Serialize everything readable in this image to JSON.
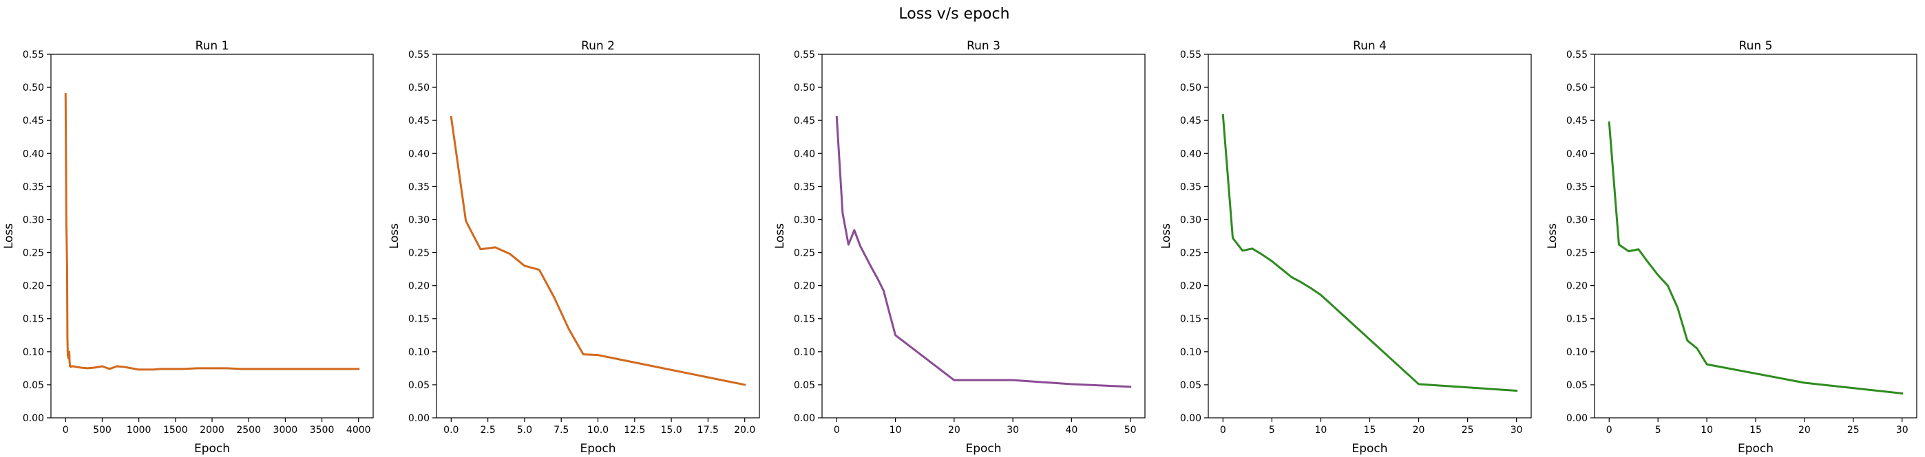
{
  "figure": {
    "title": "Loss v/s epoch"
  },
  "chart_data": [
    {
      "type": "line",
      "title": "Run 1",
      "xlabel": "Epoch",
      "ylabel": "Loss",
      "color": "#d2691e",
      "xlim": [
        -200,
        4200
      ],
      "ylim": [
        0,
        0.55
      ],
      "xticks": [
        0,
        500,
        1000,
        1500,
        2000,
        2500,
        3000,
        3500,
        4000
      ],
      "xtick_labels": [
        "0",
        "500",
        "1000",
        "1500",
        "2000",
        "2500",
        "3000",
        "3500",
        "4000"
      ],
      "yticks": [
        0,
        0.05,
        0.1,
        0.15,
        0.2,
        0.25,
        0.3,
        0.35,
        0.4,
        0.45,
        0.5,
        0.55
      ],
      "ytick_labels": [
        "0.00",
        "0.05",
        "0.10",
        "0.15",
        "0.20",
        "0.25",
        "0.30",
        "0.35",
        "0.40",
        "0.45",
        "0.50",
        "0.55"
      ],
      "grid": false,
      "series": [
        {
          "x": [
            0,
            5,
            10,
            20,
            25,
            30,
            40,
            50,
            55,
            60,
            70,
            80,
            100,
            150,
            200,
            300,
            400,
            500,
            550,
            600,
            700,
            800,
            900,
            1000,
            1100,
            1200,
            1300,
            1400,
            1600,
            1800,
            2000,
            2200,
            2400,
            3000,
            3500,
            4000
          ],
          "y": [
            0.49,
            0.4,
            0.3,
            0.23,
            0.12,
            0.095,
            0.09,
            0.1,
            0.085,
            0.078,
            0.077,
            0.078,
            0.078,
            0.077,
            0.076,
            0.075,
            0.076,
            0.078,
            0.076,
            0.074,
            0.078,
            0.077,
            0.075,
            0.073,
            0.073,
            0.073,
            0.074,
            0.074,
            0.074,
            0.075,
            0.075,
            0.075,
            0.074,
            0.074,
            0.074,
            0.074
          ]
        }
      ]
    },
    {
      "type": "line",
      "title": "Run 2",
      "xlabel": "Epoch",
      "ylabel": "Loss",
      "color": "#d2691e",
      "xlim": [
        -1,
        21
      ],
      "ylim": [
        0,
        0.55
      ],
      "xticks": [
        0,
        2.5,
        5,
        7.5,
        10,
        12.5,
        15,
        17.5,
        20
      ],
      "xtick_labels": [
        "0.0",
        "2.5",
        "5.0",
        "7.5",
        "10.0",
        "12.5",
        "15.0",
        "17.5",
        "20.0"
      ],
      "yticks": [
        0,
        0.05,
        0.1,
        0.15,
        0.2,
        0.25,
        0.3,
        0.35,
        0.4,
        0.45,
        0.5,
        0.55
      ],
      "ytick_labels": [
        "0.00",
        "0.05",
        "0.10",
        "0.15",
        "0.20",
        "0.25",
        "0.30",
        "0.35",
        "0.40",
        "0.45",
        "0.50",
        "0.55"
      ],
      "grid": false,
      "series": [
        {
          "x": [
            0,
            1,
            2,
            3,
            4,
            5,
            6,
            7,
            8,
            9,
            10,
            20
          ],
          "y": [
            0.455,
            0.298,
            0.255,
            0.258,
            0.248,
            0.23,
            0.224,
            0.183,
            0.135,
            0.096,
            0.095,
            0.05
          ]
        }
      ]
    },
    {
      "type": "line",
      "title": "Run 3",
      "xlabel": "Epoch",
      "ylabel": "Loss",
      "color": "#8b4c95",
      "xlim": [
        -2.5,
        52.5
      ],
      "ylim": [
        0,
        0.55
      ],
      "xticks": [
        0,
        10,
        20,
        30,
        40,
        50
      ],
      "xtick_labels": [
        "0",
        "10",
        "20",
        "30",
        "40",
        "50"
      ],
      "yticks": [
        0,
        0.05,
        0.1,
        0.15,
        0.2,
        0.25,
        0.3,
        0.35,
        0.4,
        0.45,
        0.5,
        0.55
      ],
      "ytick_labels": [
        "0.00",
        "0.05",
        "0.10",
        "0.15",
        "0.20",
        "0.25",
        "0.30",
        "0.35",
        "0.40",
        "0.45",
        "0.50",
        "0.55"
      ],
      "grid": false,
      "series": [
        {
          "x": [
            0,
            1,
            2,
            3,
            4,
            5,
            6,
            7,
            8,
            9,
            10,
            20,
            30,
            40,
            50
          ],
          "y": [
            0.455,
            0.31,
            0.262,
            0.284,
            0.26,
            0.243,
            0.226,
            0.21,
            0.192,
            0.158,
            0.125,
            0.057,
            0.057,
            0.051,
            0.047
          ]
        }
      ]
    },
    {
      "type": "line",
      "title": "Run 4",
      "xlabel": "Epoch",
      "ylabel": "Loss",
      "color": "#2e8b1f",
      "xlim": [
        -1.5,
        31.5
      ],
      "ylim": [
        0,
        0.55
      ],
      "xticks": [
        0,
        5,
        10,
        15,
        20,
        25,
        30
      ],
      "xtick_labels": [
        "0",
        "5",
        "10",
        "15",
        "20",
        "25",
        "30"
      ],
      "yticks": [
        0,
        0.05,
        0.1,
        0.15,
        0.2,
        0.25,
        0.3,
        0.35,
        0.4,
        0.45,
        0.5,
        0.55
      ],
      "ytick_labels": [
        "0.00",
        "0.05",
        "0.10",
        "0.15",
        "0.20",
        "0.25",
        "0.30",
        "0.35",
        "0.40",
        "0.45",
        "0.50",
        "0.55"
      ],
      "grid": false,
      "series": [
        {
          "x": [
            0,
            1,
            2,
            3,
            4,
            5,
            6,
            7,
            8,
            9,
            10,
            20,
            30
          ],
          "y": [
            0.458,
            0.272,
            0.253,
            0.256,
            0.247,
            0.237,
            0.225,
            0.213,
            0.205,
            0.196,
            0.186,
            0.051,
            0.041
          ]
        }
      ]
    },
    {
      "type": "line",
      "title": "Run 5",
      "xlabel": "Epoch",
      "ylabel": "Loss",
      "color": "#2e8b1f",
      "xlim": [
        -1.5,
        31.5
      ],
      "ylim": [
        0,
        0.55
      ],
      "xticks": [
        0,
        5,
        10,
        15,
        20,
        25,
        30
      ],
      "xtick_labels": [
        "0",
        "5",
        "10",
        "15",
        "20",
        "25",
        "30"
      ],
      "yticks": [
        0,
        0.05,
        0.1,
        0.15,
        0.2,
        0.25,
        0.3,
        0.35,
        0.4,
        0.45,
        0.5,
        0.55
      ],
      "ytick_labels": [
        "0.00",
        "0.05",
        "0.10",
        "0.15",
        "0.20",
        "0.25",
        "0.30",
        "0.35",
        "0.40",
        "0.45",
        "0.50",
        "0.55"
      ],
      "grid": false,
      "series": [
        {
          "x": [
            0,
            1,
            2,
            3,
            4,
            5,
            6,
            7,
            8,
            9,
            10,
            20,
            30
          ],
          "y": [
            0.447,
            0.262,
            0.252,
            0.255,
            0.235,
            0.216,
            0.2,
            0.167,
            0.117,
            0.105,
            0.081,
            0.053,
            0.037
          ]
        }
      ]
    }
  ]
}
